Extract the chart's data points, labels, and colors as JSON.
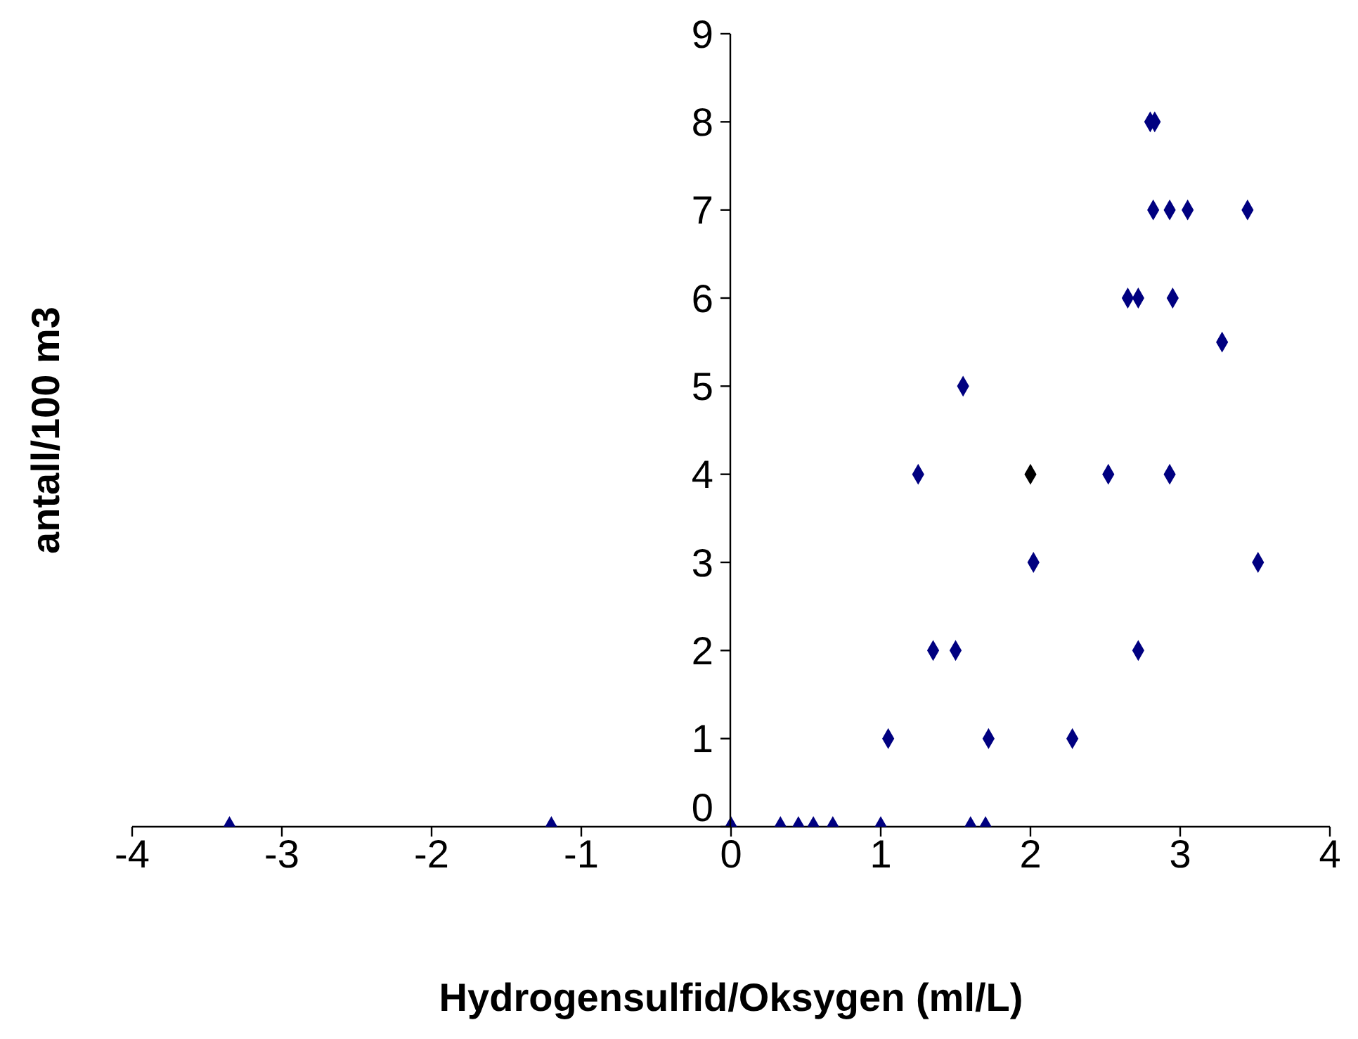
{
  "chart_data": {
    "type": "scatter",
    "xlabel": "Hydrogensulfid/Oksygen (ml/L)",
    "ylabel": "antall/100 m3",
    "xlim": [
      -4,
      4
    ],
    "xticks": [
      -4,
      -3,
      -2,
      -1,
      0,
      1,
      2,
      3,
      4
    ],
    "ylim": [
      0,
      9
    ],
    "yticks": [
      0,
      1,
      2,
      3,
      4,
      5,
      6,
      7,
      8,
      9
    ],
    "marker": "diamond",
    "series": [
      {
        "color": "#000080",
        "x": [
          -3.35,
          -1.2,
          0,
          0.33,
          0.45,
          0.55,
          0.68,
          1.0,
          1.6,
          1.7,
          1.05,
          1.72,
          2.28,
          1.35,
          1.5,
          2.72,
          2.02,
          3.52,
          1.25,
          2.52,
          2.93,
          1.55,
          3.28,
          2.65,
          2.72,
          2.95,
          2.82,
          2.93,
          3.05,
          3.45,
          2.8,
          2.83
        ],
        "values": [
          0,
          0,
          0,
          0,
          0,
          0,
          0,
          0,
          0,
          0,
          1,
          1,
          1,
          2,
          2,
          2,
          3,
          3,
          4,
          4,
          4,
          5,
          5.5,
          6,
          6,
          6,
          7,
          7,
          7,
          7,
          8,
          8
        ]
      },
      {
        "color": "#000000",
        "x": [
          2
        ],
        "values": [
          4
        ]
      }
    ]
  }
}
